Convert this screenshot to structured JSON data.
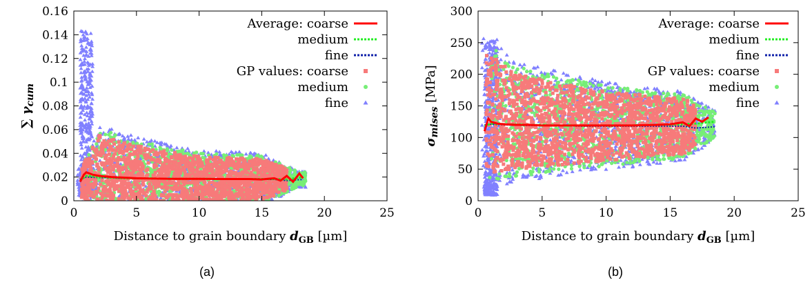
{
  "chart_data": [
    {
      "type": "scatter",
      "panel_label": "(a)",
      "xlabel_text": "Distance to grain boundary ",
      "xlabel_symbol": "d",
      "xlabel_subscript": "GB",
      "xlabel_unit": " [µm]",
      "ylabel_symbol": "∑ γ",
      "ylabel_subscript": "cum",
      "xlim": [
        0,
        25
      ],
      "ylim": [
        0,
        0.16
      ],
      "x_ticks": [
        "0",
        "5",
        "10",
        "15",
        "20",
        "25"
      ],
      "y_ticks": [
        "0",
        "0.02",
        "0.04",
        "0.06",
        "0.08",
        "0.1",
        "0.12",
        "0.14",
        "0.16"
      ],
      "x_tick_values": [
        0,
        5,
        10,
        15,
        20,
        25
      ],
      "y_tick_values": [
        0,
        0.02,
        0.04,
        0.06,
        0.08,
        0.1,
        0.12,
        0.14,
        0.16
      ],
      "legend": [
        {
          "label": "Average: coarse",
          "kind": "line",
          "color": "#ff0000",
          "dash": "solid"
        },
        {
          "label": "medium",
          "kind": "line",
          "color": "#22ee22",
          "dash": "dotted"
        },
        {
          "label": "fine",
          "kind": "line",
          "color": "#1122aa",
          "dash": "dotted"
        },
        {
          "label": "GP values: coarse",
          "kind": "square",
          "color": "#f77a7a"
        },
        {
          "label": "medium",
          "kind": "circle",
          "color": "#77ee77"
        },
        {
          "label": "fine",
          "kind": "triangle",
          "color": "#8080ff"
        }
      ],
      "series": [
        {
          "name": "Average: coarse",
          "color": "#ff0000",
          "x": [
            0.5,
            0.8,
            1.0,
            1.5,
            2.0,
            3,
            4,
            5,
            6,
            8,
            10,
            12,
            14,
            15,
            16,
            16.5,
            17,
            17.5,
            18,
            18.3
          ],
          "y": [
            0.016,
            0.022,
            0.024,
            0.022,
            0.021,
            0.02,
            0.0195,
            0.019,
            0.0188,
            0.0185,
            0.0185,
            0.0183,
            0.0183,
            0.018,
            0.019,
            0.017,
            0.021,
            0.016,
            0.023,
            0.019
          ]
        },
        {
          "name": "Average: medium",
          "color": "#22ee22",
          "x": [
            0.5,
            1.0,
            2,
            4,
            6,
            8,
            10,
            12,
            14,
            16,
            17,
            18.3
          ],
          "y": [
            0.017,
            0.021,
            0.02,
            0.019,
            0.0188,
            0.0185,
            0.0185,
            0.0183,
            0.0183,
            0.0183,
            0.018,
            0.02
          ]
        },
        {
          "name": "Average: fine",
          "color": "#1122aa",
          "x": [
            0.5,
            1.0,
            2,
            4,
            6,
            8,
            10,
            12,
            14,
            16,
            17,
            18.3
          ],
          "y": [
            0.018,
            0.02,
            0.0195,
            0.019,
            0.0186,
            0.0184,
            0.0183,
            0.0182,
            0.0181,
            0.018,
            0.017,
            0.018
          ]
        }
      ],
      "gp_cloud": {
        "coarse_color": "#f77a7a",
        "medium_color": "#77ee77",
        "fine_color": "#8080ff",
        "x_range": [
          0.3,
          18.5
        ],
        "band_center": [
          [
            0.5,
            0.015
          ],
          [
            2,
            0.02
          ],
          [
            5,
            0.02
          ],
          [
            10,
            0.018
          ],
          [
            15,
            0.018
          ],
          [
            18,
            0.018
          ]
        ],
        "band_halfwidth": [
          [
            0.5,
            0.012
          ],
          [
            2,
            0.04
          ],
          [
            5,
            0.03
          ],
          [
            10,
            0.022
          ],
          [
            15,
            0.02
          ],
          [
            18,
            0.006
          ]
        ],
        "fine_spike_x": [
          0.5,
          1.5
        ],
        "fine_spike_top": 0.145
      }
    },
    {
      "type": "scatter",
      "panel_label": "(b)",
      "xlabel_text": "Distance to grain boundary ",
      "xlabel_symbol": "d",
      "xlabel_subscript": "GB",
      "xlabel_unit": " [µm]",
      "ylabel_symbol": "σ",
      "ylabel_subscript": "mises",
      "ylabel_unit": " [MPa]",
      "xlim": [
        0,
        25
      ],
      "ylim": [
        0,
        300
      ],
      "x_ticks": [
        "0",
        "5",
        "10",
        "15",
        "20",
        "25"
      ],
      "y_ticks": [
        "0",
        "50",
        "100",
        "150",
        "200",
        "250",
        "300"
      ],
      "x_tick_values": [
        0,
        5,
        10,
        15,
        20,
        25
      ],
      "y_tick_values": [
        0,
        50,
        100,
        150,
        200,
        250,
        300
      ],
      "legend": [
        {
          "label": "Average: coarse",
          "kind": "line",
          "color": "#ff0000",
          "dash": "solid"
        },
        {
          "label": "medium",
          "kind": "line",
          "color": "#22ee22",
          "dash": "dotted"
        },
        {
          "label": "fine",
          "kind": "line",
          "color": "#1122aa",
          "dash": "dotted"
        },
        {
          "label": "GP values: coarse",
          "kind": "square",
          "color": "#f77a7a"
        },
        {
          "label": "medium",
          "kind": "circle",
          "color": "#77ee77"
        },
        {
          "label": "fine",
          "kind": "triangle",
          "color": "#8080ff"
        }
      ],
      "series": [
        {
          "name": "Average: coarse",
          "color": "#ff0000",
          "x": [
            0.5,
            0.8,
            1.0,
            1.5,
            2,
            3,
            4,
            5,
            6,
            8,
            10,
            12,
            14,
            15,
            16,
            16.5,
            17,
            17.5,
            18
          ],
          "y": [
            110,
            130,
            125,
            122,
            121,
            120,
            120,
            119,
            119,
            119,
            119,
            119,
            120,
            121,
            124,
            118,
            130,
            125,
            132
          ]
        },
        {
          "name": "Average: medium",
          "color": "#22ee22",
          "x": [
            0.5,
            1.0,
            2,
            4,
            6,
            8,
            10,
            12,
            14,
            16,
            17,
            18.5
          ],
          "y": [
            118,
            122,
            121,
            120,
            119,
            119,
            119,
            119,
            120,
            121,
            122,
            125
          ]
        },
        {
          "name": "Average: fine",
          "color": "#1122aa",
          "x": [
            0.5,
            1.0,
            2,
            4,
            6,
            8,
            10,
            12,
            14,
            16,
            17,
            18.5
          ],
          "y": [
            120,
            121,
            120,
            119,
            119,
            118,
            118,
            118,
            118,
            118,
            115,
            117
          ]
        }
      ],
      "gp_cloud": {
        "coarse_color": "#f77a7a",
        "medium_color": "#77ee77",
        "fine_color": "#8080ff",
        "x_range": [
          0.3,
          18.5
        ],
        "band_center": [
          [
            0.5,
            140
          ],
          [
            3,
            125
          ],
          [
            10,
            118
          ],
          [
            16,
            118
          ],
          [
            18.5,
            120
          ]
        ],
        "band_halfwidth": [
          [
            0.5,
            110
          ],
          [
            3,
            85
          ],
          [
            10,
            62
          ],
          [
            16,
            50
          ],
          [
            18.5,
            20
          ]
        ],
        "fine_spike_x": [
          0.5,
          1.5
        ],
        "fine_spike_top": 255
      }
    }
  ]
}
